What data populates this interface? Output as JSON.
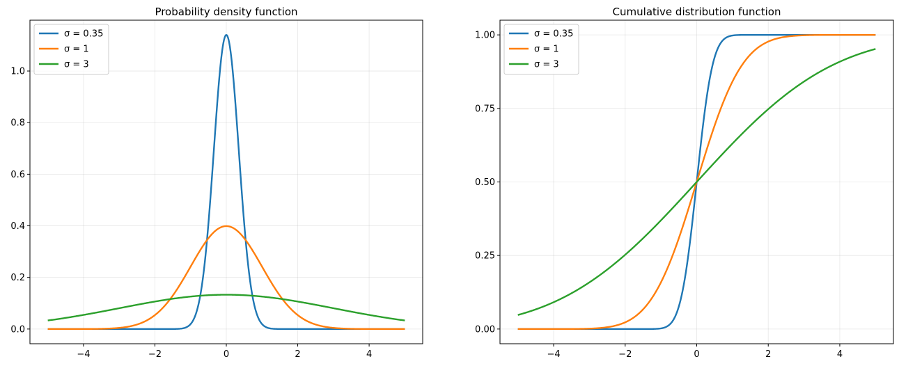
{
  "chart_data": [
    {
      "type": "line",
      "title": "Probability density function",
      "xlabel": "",
      "ylabel": "",
      "function": "pdf",
      "xlim": [
        -5.5,
        5.5
      ],
      "ylim": [
        -0.057,
        1.197
      ],
      "x_range": [
        -5,
        5
      ],
      "xticks": [
        -4,
        -2,
        0,
        2,
        4
      ],
      "xtick_labels": [
        "−4",
        "−2",
        "0",
        "2",
        "4"
      ],
      "yticks": [
        0.0,
        0.2,
        0.4,
        0.6,
        0.8,
        1.0
      ],
      "ytick_labels": [
        "0.0",
        "0.2",
        "0.4",
        "0.6",
        "0.8",
        "1.0"
      ],
      "grid": true,
      "legend_position": "upper-left",
      "series": [
        {
          "name": "σ = 0.35",
          "sigma": 0.35,
          "color": "#1f77b4"
        },
        {
          "name": "σ = 1",
          "sigma": 1,
          "color": "#ff7f0e"
        },
        {
          "name": "σ = 3",
          "sigma": 3,
          "color": "#2ca02c"
        }
      ]
    },
    {
      "type": "line",
      "title": "Cumulative distribution function",
      "xlabel": "",
      "ylabel": "",
      "function": "cdf",
      "xlim": [
        -5.5,
        5.5
      ],
      "ylim": [
        -0.05,
        1.05
      ],
      "x_range": [
        -5,
        5
      ],
      "xticks": [
        -4,
        -2,
        0,
        2,
        4
      ],
      "xtick_labels": [
        "−4",
        "−2",
        "0",
        "2",
        "4"
      ],
      "yticks": [
        0.0,
        0.25,
        0.5,
        0.75,
        1.0
      ],
      "ytick_labels": [
        "0.00",
        "0.25",
        "0.50",
        "0.75",
        "1.00"
      ],
      "grid": true,
      "legend_position": "upper-left",
      "series": [
        {
          "name": "σ = 0.35",
          "sigma": 0.35,
          "color": "#1f77b4"
        },
        {
          "name": "σ = 1",
          "sigma": 1,
          "color": "#ff7f0e"
        },
        {
          "name": "σ = 3",
          "sigma": 3,
          "color": "#2ca02c"
        }
      ]
    }
  ]
}
